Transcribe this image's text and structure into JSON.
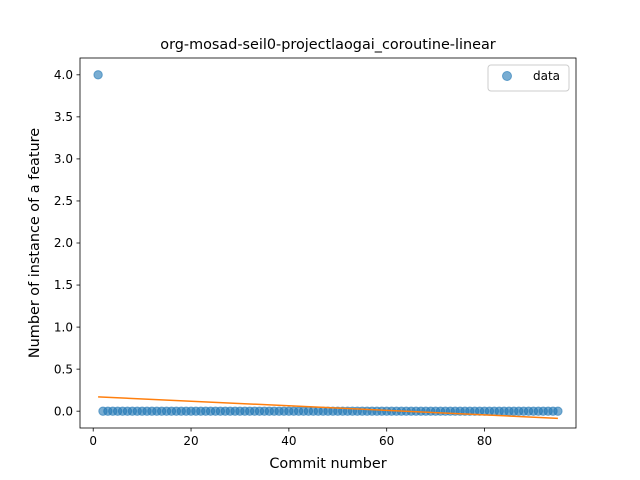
{
  "chart_data": {
    "type": "scatter",
    "title": "org-mosad-seil0-projectlaogai_coroutine-linear",
    "xlabel": "Commit number",
    "ylabel": "Number of instance of a feature",
    "xlim": [
      -2.7,
      98.7
    ],
    "ylim": [
      -0.2,
      4.2
    ],
    "xticks": [
      0,
      20,
      40,
      60,
      80
    ],
    "yticks": [
      0.0,
      0.5,
      1.0,
      1.5,
      2.0,
      2.5,
      3.0,
      3.5,
      4.0
    ],
    "xtick_labels": [
      "0",
      "20",
      "40",
      "60",
      "80"
    ],
    "ytick_labels": [
      "0.0",
      "0.5",
      "1.0",
      "1.5",
      "2.0",
      "2.5",
      "3.0",
      "3.5",
      "4.0"
    ],
    "grid": false,
    "legend": {
      "position": "top-right",
      "entries": [
        "data"
      ]
    },
    "series": [
      {
        "name": "data",
        "kind": "scatter",
        "color": "#1f77b4",
        "x": [
          1,
          2,
          3,
          4,
          5,
          6,
          7,
          8,
          9,
          10,
          11,
          12,
          13,
          14,
          15,
          16,
          17,
          18,
          19,
          20,
          21,
          22,
          23,
          24,
          25,
          26,
          27,
          28,
          29,
          30,
          31,
          32,
          33,
          34,
          35,
          36,
          37,
          38,
          39,
          40,
          41,
          42,
          43,
          44,
          45,
          46,
          47,
          48,
          49,
          50,
          51,
          52,
          53,
          54,
          55,
          56,
          57,
          58,
          59,
          60,
          61,
          62,
          63,
          64,
          65,
          66,
          67,
          68,
          69,
          70,
          71,
          72,
          73,
          74,
          75,
          76,
          77,
          78,
          79,
          80,
          81,
          82,
          83,
          84,
          85,
          86,
          87,
          88,
          89,
          90,
          91,
          92,
          93,
          94,
          95
        ],
        "y": [
          4,
          0,
          0,
          0,
          0,
          0,
          0,
          0,
          0,
          0,
          0,
          0,
          0,
          0,
          0,
          0,
          0,
          0,
          0,
          0,
          0,
          0,
          0,
          0,
          0,
          0,
          0,
          0,
          0,
          0,
          0,
          0,
          0,
          0,
          0,
          0,
          0,
          0,
          0,
          0,
          0,
          0,
          0,
          0,
          0,
          0,
          0,
          0,
          0,
          0,
          0,
          0,
          0,
          0,
          0,
          0,
          0,
          0,
          0,
          0,
          0,
          0,
          0,
          0,
          0,
          0,
          0,
          0,
          0,
          0,
          0,
          0,
          0,
          0,
          0,
          0,
          0,
          0,
          0,
          0,
          0,
          0,
          0,
          0,
          0,
          0,
          0,
          0,
          0,
          0,
          0,
          0,
          0,
          0,
          0
        ]
      },
      {
        "kind": "line",
        "color": "#ff7f0e",
        "x": [
          1,
          95
        ],
        "y": [
          0.17,
          -0.085
        ]
      }
    ]
  }
}
